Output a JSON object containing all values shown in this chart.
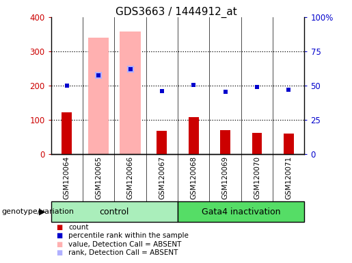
{
  "title": "GDS3663 / 1444912_at",
  "samples": [
    "GSM120064",
    "GSM120065",
    "GSM120066",
    "GSM120067",
    "GSM120068",
    "GSM120069",
    "GSM120070",
    "GSM120071"
  ],
  "count_values": [
    122,
    0,
    0,
    67,
    108,
    70,
    62,
    60
  ],
  "percentile_rank_left": [
    200,
    230,
    248,
    183,
    202,
    182,
    195,
    187
  ],
  "absent_value": [
    0,
    340,
    357,
    0,
    0,
    0,
    0,
    0
  ],
  "absent_rank_left": [
    0,
    230,
    248,
    0,
    0,
    0,
    0,
    0
  ],
  "absent_mask": [
    false,
    true,
    true,
    false,
    false,
    false,
    false,
    false
  ],
  "ylim_left": [
    0,
    400
  ],
  "ylim_right": [
    0,
    100
  ],
  "yticks_left": [
    0,
    100,
    200,
    300,
    400
  ],
  "yticks_right": [
    0,
    25,
    50,
    75,
    100
  ],
  "ytick_labels_right": [
    "0",
    "25",
    "50",
    "75",
    "100%"
  ],
  "color_count": "#cc0000",
  "color_rank": "#0000cc",
  "color_absent_value": "#ffb0b0",
  "color_absent_rank": "#b0b0ff",
  "color_control_bg": "#aaeebb",
  "color_gata4_bg": "#55dd66",
  "color_sample_bg": "#c8c8c8",
  "legend_items": [
    "count",
    "percentile rank within the sample",
    "value, Detection Call = ABSENT",
    "rank, Detection Call = ABSENT"
  ],
  "legend_colors": [
    "#cc0000",
    "#0000cc",
    "#ffb0b0",
    "#b0b0ff"
  ]
}
